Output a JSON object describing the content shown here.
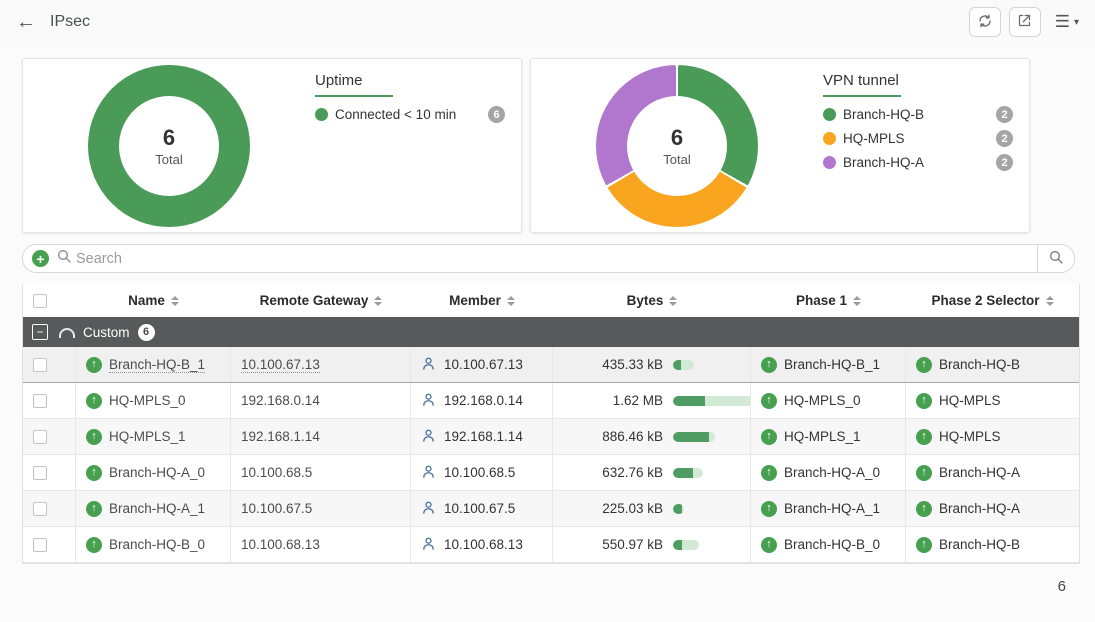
{
  "topbar": {
    "title": "IPsec"
  },
  "icons": {
    "back": "←",
    "menu": "☰",
    "menu_caret": "▾",
    "add": "+",
    "collapse": "−",
    "tunnel_up": "↑"
  },
  "colors": {
    "green": "#4a9b57",
    "orange": "#f9a51f",
    "purple": "#b177ce",
    "icon_green": "#46a04f",
    "bar_dark": "#4f9d62",
    "bar_light": "#d2e9d6",
    "group_bg": "#58595b"
  },
  "cards": [
    {
      "title": "Uptime",
      "total": "6",
      "total_label": "Total",
      "segments": [
        {
          "label": "Connected < 10 min",
          "count": "6",
          "color": "#4a9b57",
          "from": 0,
          "to": 360
        }
      ]
    },
    {
      "title": "VPN tunnel",
      "total": "6",
      "total_label": "Total",
      "segments": [
        {
          "label": "Branch-HQ-B",
          "count": "2",
          "color": "#4a9b57",
          "from": 0,
          "to": 120
        },
        {
          "label": "HQ-MPLS",
          "count": "2",
          "color": "#f9a51f",
          "from": 120,
          "to": 240
        },
        {
          "label": "Branch-HQ-A",
          "count": "2",
          "color": "#b177ce",
          "from": 240,
          "to": 360
        }
      ]
    }
  ],
  "search": {
    "placeholder": "Search"
  },
  "table": {
    "columns": [
      "Name",
      "Remote Gateway",
      "Member",
      "Bytes",
      "Phase 1",
      "Phase 2 Selector"
    ],
    "group": {
      "label": "Custom",
      "count": "6"
    },
    "rows": [
      {
        "name": "Branch-HQ-B_1",
        "gateway": "10.100.67.13",
        "member": "10.100.67.13",
        "bytes": "435.33 kB",
        "bar_total": 0.26,
        "bar_fill": 0.4,
        "phase1": "Branch-HQ-B_1",
        "phase2": "Branch-HQ-B",
        "hovered": true
      },
      {
        "name": "HQ-MPLS_0",
        "gateway": "192.168.0.14",
        "member": "192.168.0.14",
        "bytes": "1.62 MB",
        "bar_total": 1.0,
        "bar_fill": 0.4,
        "phase1": "HQ-MPLS_0",
        "phase2": "HQ-MPLS",
        "hovered": false
      },
      {
        "name": "HQ-MPLS_1",
        "gateway": "192.168.1.14",
        "member": "192.168.1.14",
        "bytes": "886.46 kB",
        "bar_total": 0.53,
        "bar_fill": 0.85,
        "phase1": "HQ-MPLS_1",
        "phase2": "HQ-MPLS",
        "hovered": false
      },
      {
        "name": "Branch-HQ-A_0",
        "gateway": "10.100.68.5",
        "member": "10.100.68.5",
        "bytes": "632.76 kB",
        "bar_total": 0.38,
        "bar_fill": 0.67,
        "phase1": "Branch-HQ-A_0",
        "phase2": "Branch-HQ-A",
        "hovered": false
      },
      {
        "name": "Branch-HQ-A_1",
        "gateway": "10.100.67.5",
        "member": "10.100.67.5",
        "bytes": "225.03 kB",
        "bar_total": 0.14,
        "bar_fill": 0.85,
        "phase1": "Branch-HQ-A_1",
        "phase2": "Branch-HQ-A",
        "hovered": false
      },
      {
        "name": "Branch-HQ-B_0",
        "gateway": "10.100.68.13",
        "member": "10.100.68.13",
        "bytes": "550.97 kB",
        "bar_total": 0.33,
        "bar_fill": 0.35,
        "phase1": "Branch-HQ-B_0",
        "phase2": "Branch-HQ-B",
        "hovered": false
      }
    ]
  },
  "footer": {
    "total_count": "6"
  }
}
